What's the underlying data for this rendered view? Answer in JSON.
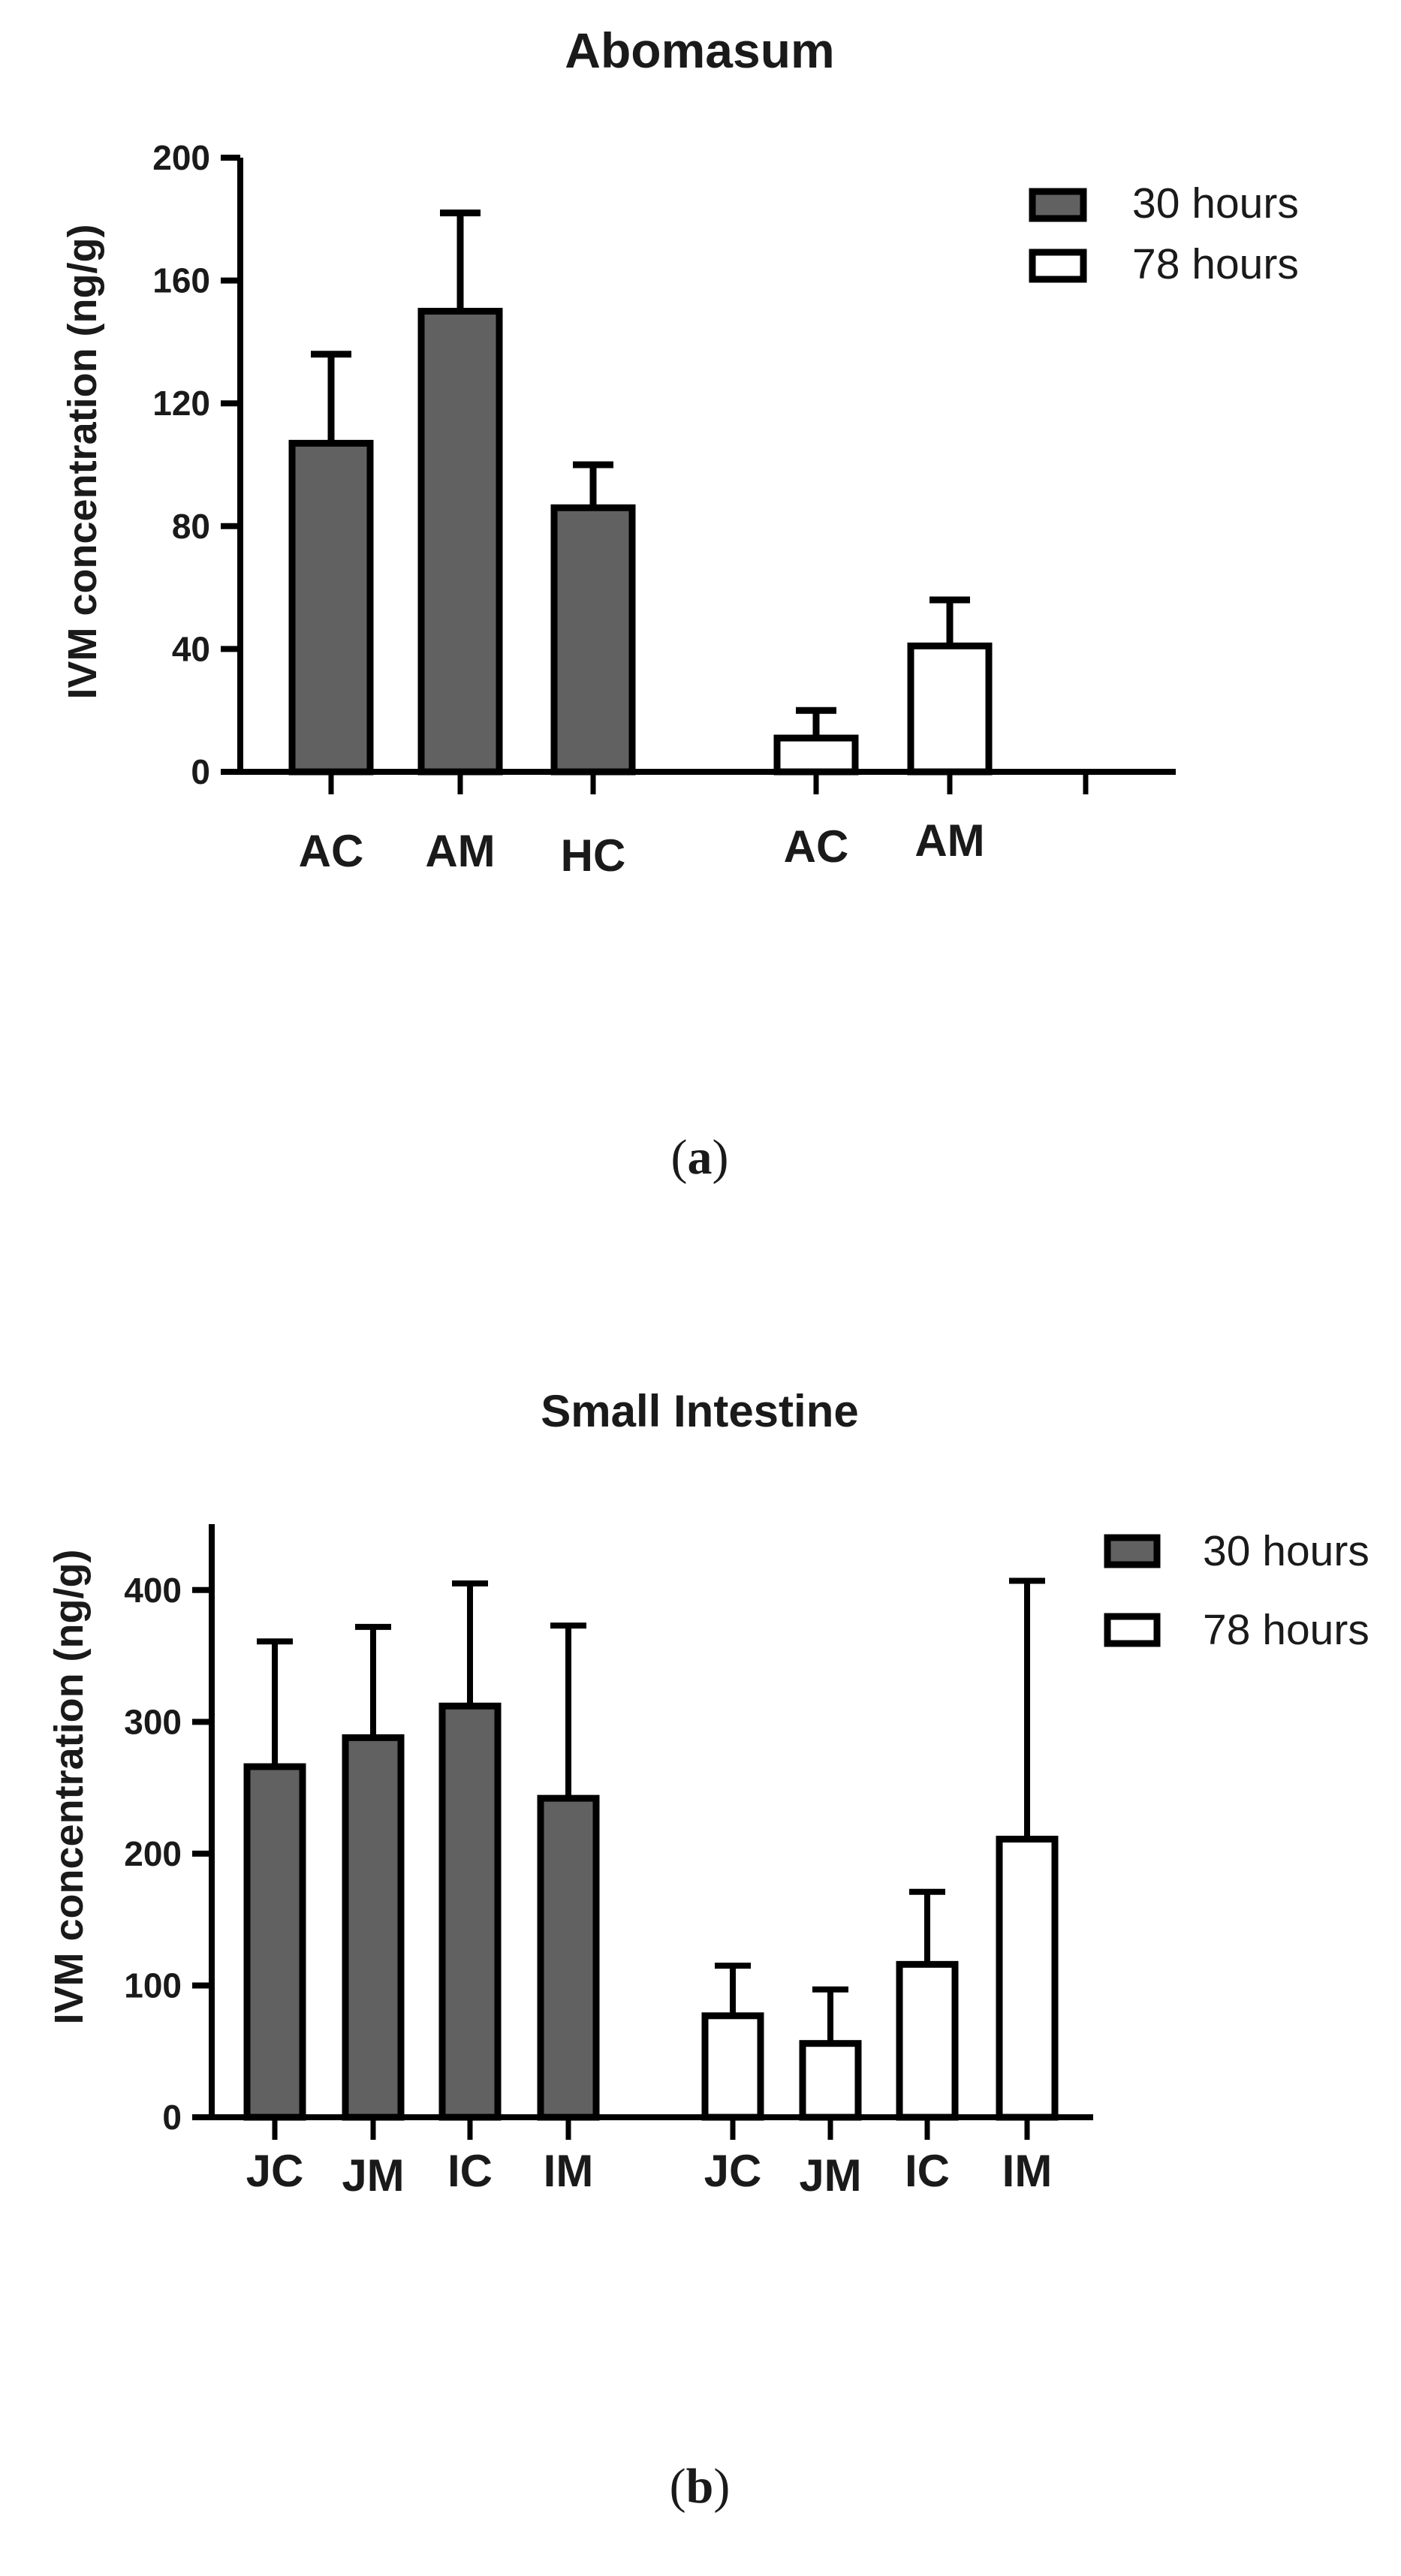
{
  "chart_data": [
    {
      "type": "bar",
      "title": "Abomasum",
      "ylabel": "IVM concentration (ng/g)",
      "xlabel": "",
      "ylim": [
        0,
        200
      ],
      "yticks": [
        0,
        40,
        80,
        120,
        160,
        200
      ],
      "grid": false,
      "legend_position": "top-right",
      "series": [
        {
          "name": "30 hours",
          "fill": "#616161",
          "categories": [
            "AC",
            "AM",
            "HC"
          ],
          "values": [
            107,
            150,
            86
          ],
          "errors": [
            29,
            32,
            14
          ]
        },
        {
          "name": "78 hours",
          "fill": "#ffffff",
          "categories": [
            "AC",
            "AM"
          ],
          "values": [
            11,
            41
          ],
          "errors": [
            9,
            15
          ]
        }
      ],
      "caption": {
        "open": "(",
        "letter": "a",
        "close": ")"
      }
    },
    {
      "type": "bar",
      "title": "Small Intestine",
      "ylabel": "IVM concentration (ng/g)",
      "xlabel": "",
      "ylim": [
        0,
        450
      ],
      "yticks": [
        0,
        100,
        200,
        300,
        400
      ],
      "grid": false,
      "legend_position": "top-right",
      "series": [
        {
          "name": "30 hours",
          "fill": "#616161",
          "categories": [
            "JC",
            "JM",
            "IC",
            "IM"
          ],
          "values": [
            266,
            288,
            312,
            242
          ],
          "errors": [
            95,
            84,
            93,
            131
          ]
        },
        {
          "name": "78 hours",
          "fill": "#ffffff",
          "categories": [
            "JC",
            "JM",
            "IC",
            "IM"
          ],
          "values": [
            77,
            56,
            116,
            211
          ],
          "errors": [
            38,
            41,
            55,
            196
          ]
        }
      ],
      "caption": {
        "open": "(",
        "letter": "b",
        "close": ")"
      }
    }
  ]
}
